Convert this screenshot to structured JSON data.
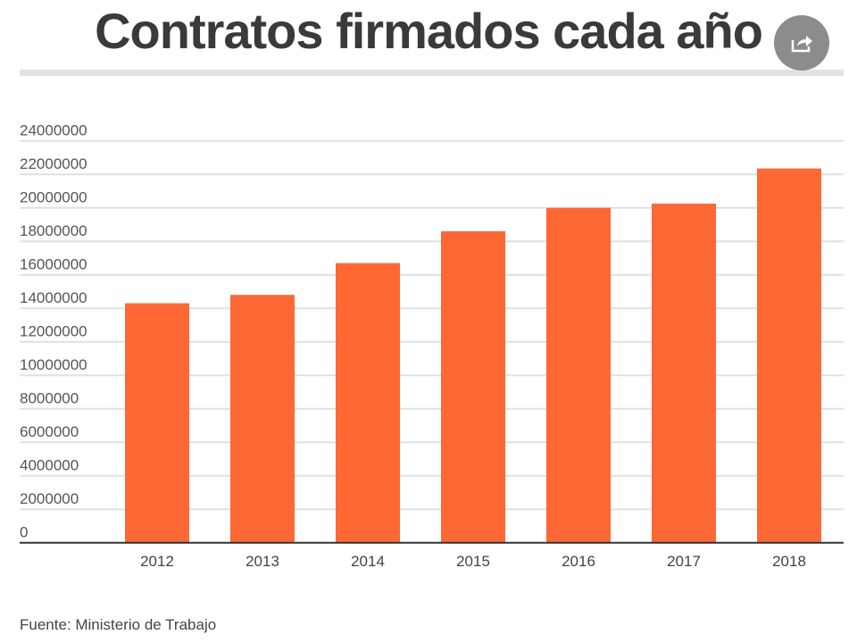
{
  "title": "Contratos firmados cada año",
  "share_icon": "share-icon",
  "source": "Fuente: Ministerio de Trabajo",
  "colors": {
    "bar": "#fd6835",
    "grid": "#e0e0e0",
    "axis": "#333333",
    "share_bg": "#8c8c8c"
  },
  "chart_data": {
    "type": "bar",
    "title": "Contratos firmados cada año",
    "xlabel": "",
    "ylabel": "",
    "categories": [
      "2012",
      "2013",
      "2014",
      "2015",
      "2016",
      "2017",
      "2018"
    ],
    "values": [
      14300000,
      14800000,
      16700000,
      18600000,
      20000000,
      20250000,
      22350000
    ],
    "ylim": [
      0,
      24000000
    ],
    "yticks": [
      0,
      2000000,
      4000000,
      6000000,
      8000000,
      10000000,
      12000000,
      14000000,
      16000000,
      18000000,
      20000000,
      22000000,
      24000000
    ],
    "ytick_labels": [
      "0",
      "2000000",
      "4000000",
      "6000000",
      "8000000",
      "10000000",
      "12000000",
      "14000000",
      "16000000",
      "18000000",
      "20000000",
      "22000000",
      "24000000"
    ],
    "grid": true,
    "legend": "none"
  }
}
